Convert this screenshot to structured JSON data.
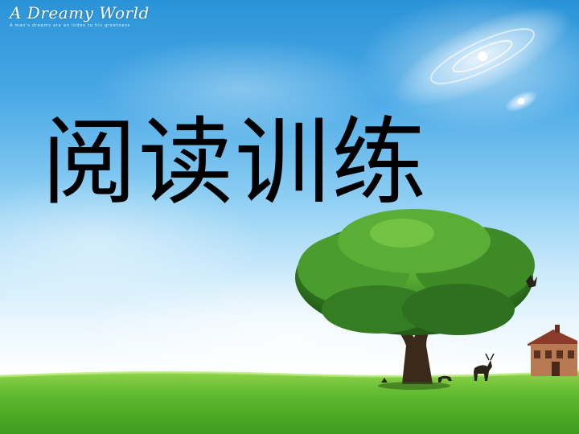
{
  "brand": {
    "title": "A Dreamy World",
    "tagline": "A man's dreams are an index to his greatness"
  },
  "slide": {
    "title": "阅读训练"
  },
  "colors": {
    "sky_top": "#2a93d8",
    "grass": "#5cb830",
    "tree_foliage": "#3f8f2a",
    "title_text": "#000000"
  },
  "icons": [
    "galaxy-swirl",
    "tree",
    "house",
    "deer",
    "bird"
  ]
}
